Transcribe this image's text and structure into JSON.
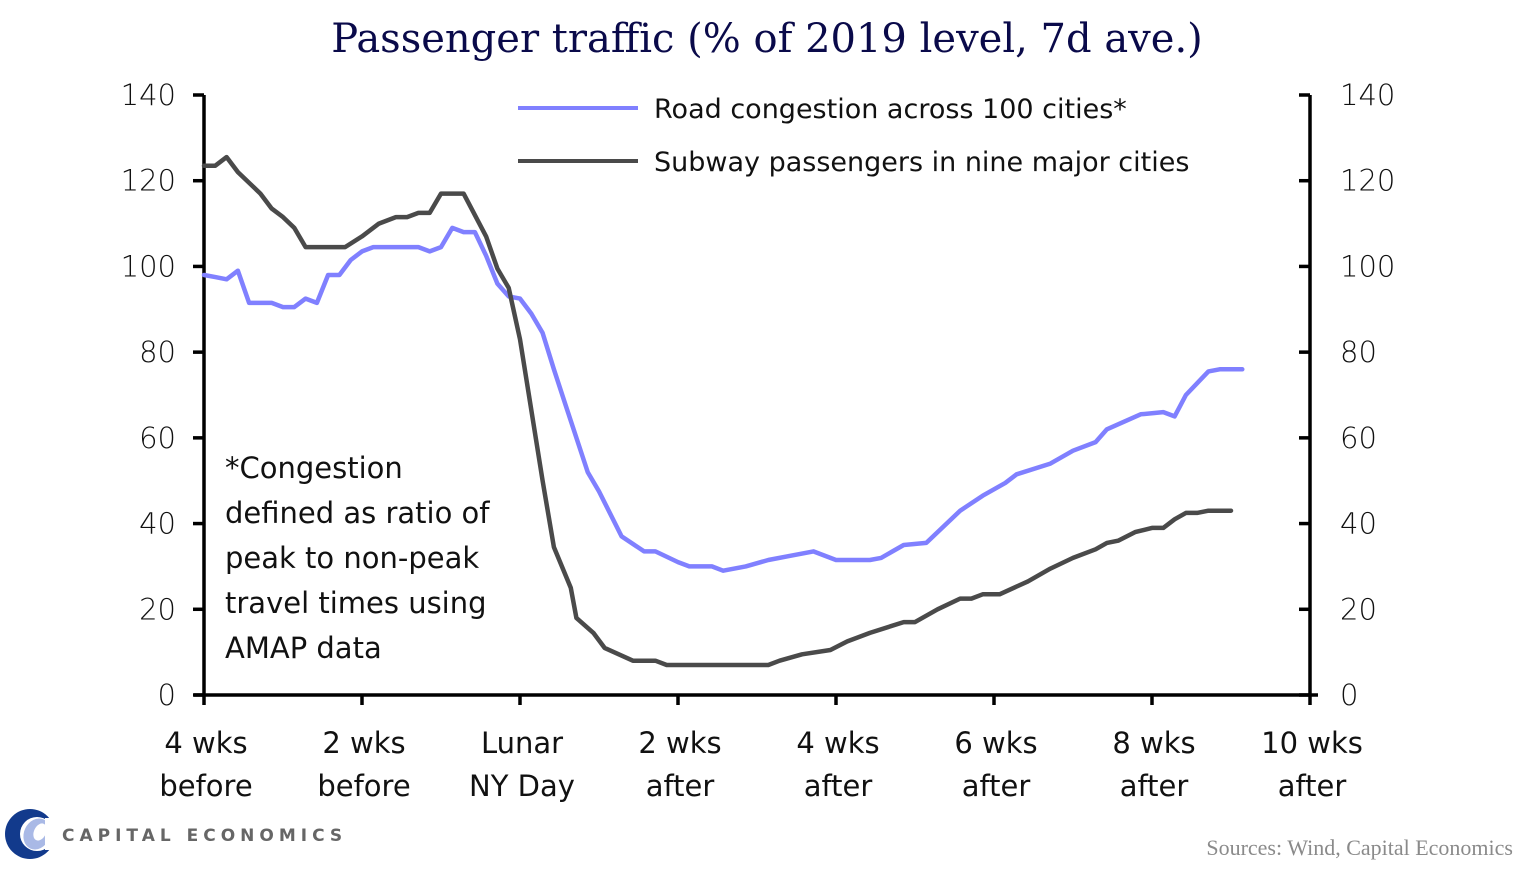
{
  "chart_data": {
    "type": "line",
    "title": "Passenger traffic (% of 2019 level, 7d ave.)",
    "xlabel": "",
    "ylabel": "",
    "x_unit": "days relative to Lunar New Year Day",
    "xlim": [
      -28,
      70
    ],
    "ylim": [
      0,
      140
    ],
    "yticks": [
      0,
      20,
      40,
      60,
      80,
      100,
      120,
      140
    ],
    "ytick_labels": [
      "0",
      "20",
      "40",
      "60",
      "80",
      "100",
      "120",
      "140"
    ],
    "xticks": [
      {
        "x": -28,
        "lines": [
          "4 wks",
          "before"
        ]
      },
      {
        "x": -14,
        "lines": [
          "2 wks",
          "before"
        ]
      },
      {
        "x": 0,
        "lines": [
          "Lunar",
          "NY Day"
        ]
      },
      {
        "x": 14,
        "lines": [
          "2 wks",
          "after"
        ]
      },
      {
        "x": 28,
        "lines": [
          "4 wks",
          "after"
        ]
      },
      {
        "x": 42,
        "lines": [
          "6 wks",
          "after"
        ]
      },
      {
        "x": 56,
        "lines": [
          "8 wks",
          "after"
        ]
      },
      {
        "x": 70,
        "lines": [
          "10 wks",
          "after"
        ]
      }
    ],
    "grid": false,
    "legend_position": "top-right",
    "series": [
      {
        "name": "Road congestion across 100 cities*",
        "color": "#8080ff",
        "x": [
          -28,
          -27,
          -26,
          -25,
          -24,
          -22,
          -21,
          -20,
          -19,
          -18,
          -17,
          -16,
          -15,
          -14,
          -13,
          -9,
          -8,
          -7,
          -6,
          -5,
          -4,
          -3,
          -2,
          -1,
          0,
          1,
          2,
          3,
          4,
          6,
          7,
          9,
          11,
          12,
          14,
          15,
          17,
          18,
          20,
          22,
          24,
          26,
          28,
          31,
          32,
          34,
          36,
          39,
          41,
          43,
          44,
          47,
          49,
          51,
          52,
          55,
          57,
          58,
          59,
          61,
          62,
          64
        ],
        "values": [
          98,
          97.5,
          97,
          99,
          91.5,
          91.5,
          90.5,
          90.5,
          92.5,
          91.5,
          98,
          98,
          101.5,
          103.5,
          104.5,
          104.5,
          103.5,
          104.5,
          109,
          108,
          108,
          102.5,
          96,
          93,
          92.5,
          89,
          84.5,
          76,
          68,
          52,
          47.5,
          37,
          33.5,
          33.5,
          31,
          30,
          30,
          29,
          30,
          31.5,
          32.5,
          33.5,
          31.5,
          31.5,
          32,
          35,
          35.5,
          43,
          46.5,
          49.5,
          51.5,
          54,
          57,
          59,
          62,
          65.5,
          66,
          65,
          70,
          75.5,
          76,
          76
        ]
      },
      {
        "name": "Subway passengers in nine major cities",
        "color": "#4a4a4a",
        "x": [
          -28,
          -27,
          -26,
          -25,
          -23,
          -22,
          -21,
          -20,
          -19,
          -15.5,
          -14,
          -12.5,
          -11,
          -10,
          -9,
          -8,
          -7,
          -5,
          -3,
          -2,
          -1,
          0,
          1,
          2,
          3,
          4.5,
          5,
          6.5,
          7.5,
          10,
          12,
          13,
          22,
          23,
          25,
          27.5,
          29,
          31,
          34,
          35,
          37,
          39,
          40,
          41,
          42.5,
          45,
          47,
          49,
          51,
          52,
          53,
          54.5,
          56,
          57,
          58,
          59,
          60,
          61,
          63
        ],
        "values": [
          123.5,
          123.5,
          125.5,
          122,
          117,
          113.5,
          111.5,
          109,
          104.5,
          104.5,
          107,
          110,
          111.5,
          111.5,
          112.5,
          112.5,
          117,
          117,
          107,
          99.5,
          95,
          83,
          66.5,
          50,
          34.5,
          25,
          18,
          14.5,
          11,
          8,
          8,
          7,
          7,
          8,
          9.5,
          10.5,
          12.5,
          14.5,
          17,
          17,
          20,
          22.5,
          22.5,
          23.5,
          23.5,
          26.5,
          29.5,
          32,
          34,
          35.5,
          36,
          38,
          39,
          39,
          41,
          42.5,
          42.5,
          43,
          43
        ]
      }
    ],
    "annotations": [
      {
        "lines": [
          "*Congestion",
          "defined as ratio of",
          "peak to non-peak",
          "travel times using",
          "AMAP data"
        ],
        "position": "bottom-left"
      }
    ]
  },
  "footer": {
    "brand": "CAPITAL ECONOMICS",
    "logo_icon": "capital-economics-logo-icon",
    "source": "Sources: Wind, Capital Economics"
  },
  "colors": {
    "title": "#0a0a4a",
    "road": "#8080ff",
    "subway": "#4a4a4a",
    "axis": "#000000",
    "logo_dark": "#123a8c",
    "logo_light": "#a9b9e6"
  }
}
